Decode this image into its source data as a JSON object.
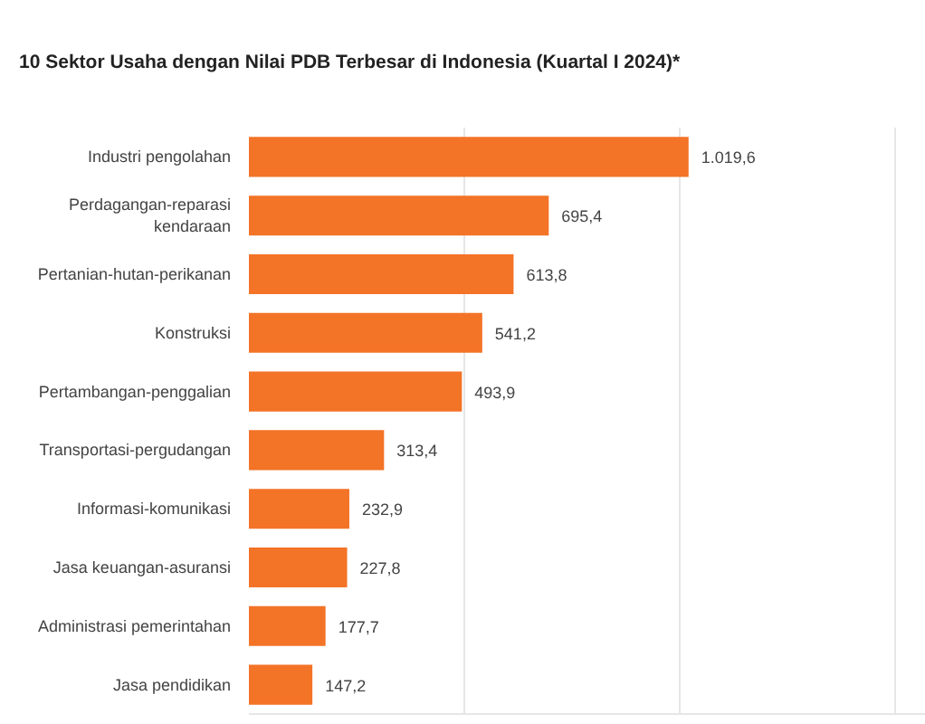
{
  "chart_data": {
    "type": "bar",
    "orientation": "horizontal",
    "title": "10 Sektor Usaha dengan Nilai PDB Terbesar di Indonesia (Kuartal I 2024)*",
    "categories": [
      "Industri pengolahan",
      "Perdagangan-reparasi\nkendaraan",
      "Pertanian-hutan-perikanan",
      "Konstruksi",
      "Pertambangan-penggalian",
      "Transportasi-pergudangan",
      "Informasi-komunikasi",
      "Jasa keuangan-asuransi",
      "Administrasi pemerintahan",
      "Jasa pendidikan"
    ],
    "values": [
      1019.6,
      695.4,
      613.8,
      541.2,
      493.9,
      313.4,
      232.9,
      227.8,
      177.7,
      147.2
    ],
    "value_labels": [
      "1.019,6",
      "695,4",
      "613,8",
      "541,2",
      "493,9",
      "313,4",
      "232,9",
      "227,8",
      "177,7",
      "147,2"
    ],
    "color": "#f37327",
    "xlim": [
      0,
      1570
    ],
    "xticks": [
      {
        "value": 500,
        "label": null
      },
      {
        "value": 1000,
        "label": null
      },
      {
        "value": 1500,
        "label": null
      }
    ],
    "tick_labels": "y",
    "grid": "x"
  }
}
